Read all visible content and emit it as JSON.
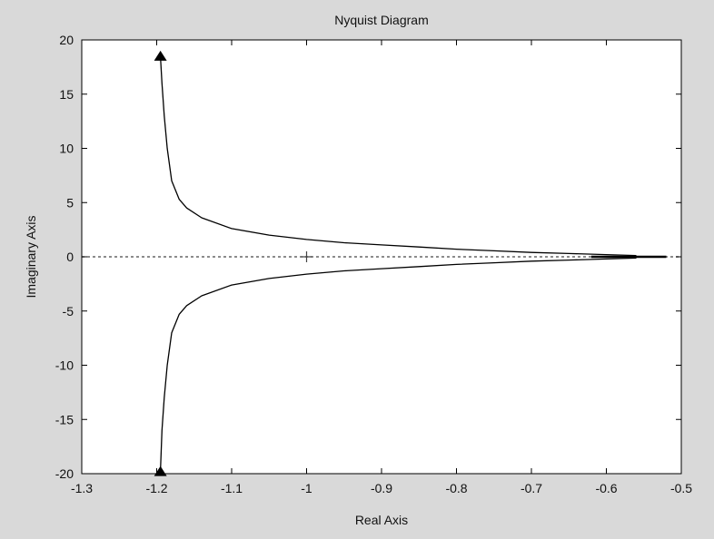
{
  "chart_data": {
    "type": "line",
    "title": "Nyquist Diagram",
    "xlabel": "Real Axis",
    "ylabel": "Imaginary Axis",
    "xlim": [
      -1.3,
      -0.5
    ],
    "ylim": [
      -20,
      20
    ],
    "xticks": [
      "-1.3",
      "-1.2",
      "-1.1",
      "-1",
      "-0.9",
      "-0.8",
      "-0.7",
      "-0.6",
      "-0.5"
    ],
    "yticks": [
      "20",
      "15",
      "10",
      "5",
      "0",
      "-5",
      "-10",
      "-15",
      "-20"
    ],
    "grid": false,
    "critical_point": [
      -1,
      0
    ],
    "reference_line": {
      "y": 0,
      "style": "dotted"
    },
    "series": [
      {
        "x": [
          -1.195,
          -1.193,
          -1.19,
          -1.186,
          -1.18,
          -1.17,
          -1.16,
          -1.14,
          -1.1,
          -1.05,
          -1.0,
          -0.95,
          -0.9,
          -0.85,
          -0.8,
          -0.75,
          -0.7,
          -0.65,
          -0.6,
          -0.56
        ],
        "y": [
          18.5,
          16.0,
          13.0,
          10.0,
          7.0,
          5.3,
          4.5,
          3.6,
          2.6,
          2.0,
          1.6,
          1.3,
          1.1,
          0.9,
          0.7,
          0.55,
          0.4,
          0.3,
          0.2,
          0.12
        ]
      },
      {
        "x": [
          -1.195,
          -1.193,
          -1.19,
          -1.186,
          -1.18,
          -1.17,
          -1.16,
          -1.14,
          -1.1,
          -1.05,
          -1.0,
          -0.95,
          -0.9,
          -0.85,
          -0.8,
          -0.75,
          -0.7,
          -0.65,
          -0.6,
          -0.56
        ],
        "y": [
          -19.8,
          -16.0,
          -13.0,
          -10.0,
          -7.0,
          -5.3,
          -4.5,
          -3.6,
          -2.6,
          -2.0,
          -1.6,
          -1.3,
          -1.1,
          -0.9,
          -0.7,
          -0.55,
          -0.4,
          -0.3,
          -0.2,
          -0.12
        ]
      },
      {
        "x": [
          -0.62,
          -0.52
        ],
        "y": [
          0,
          0
        ]
      }
    ],
    "arrows": [
      {
        "x": -1.195,
        "y": 18.5,
        "direction": "up"
      },
      {
        "x": -1.195,
        "y": -19.8,
        "direction": "up"
      }
    ],
    "colors": {
      "figure_background": "#d9d9d9",
      "plot_background": "#ffffff",
      "curve": "#000000",
      "reference_line": "#666666"
    }
  }
}
